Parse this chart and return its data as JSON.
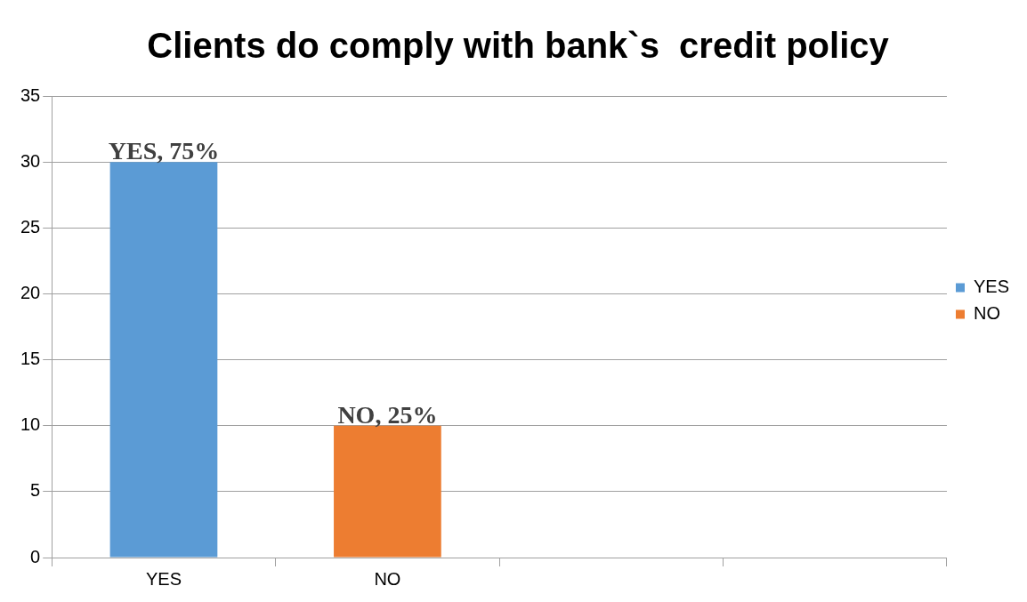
{
  "chart_data": {
    "type": "bar",
    "title": "Clients do comply with bank`s  credit policy",
    "categories": [
      "YES",
      "NO",
      null,
      null
    ],
    "series": [
      {
        "name": "YES",
        "color": "#5b9bd5",
        "values": [
          30,
          null,
          null,
          null
        ]
      },
      {
        "name": "NO",
        "color": "#ed7d31",
        "values": [
          null,
          10,
          null,
          null
        ]
      }
    ],
    "annotations": [
      {
        "text": "YES, 75%",
        "x": "YES",
        "y": 30
      },
      {
        "text": "NO, 25%",
        "x": "NO",
        "y": 10
      }
    ],
    "ylim": [
      0,
      35
    ],
    "yticks": [
      0,
      5,
      10,
      15,
      20,
      25,
      30,
      35
    ],
    "grid": "y",
    "legend": "right"
  }
}
